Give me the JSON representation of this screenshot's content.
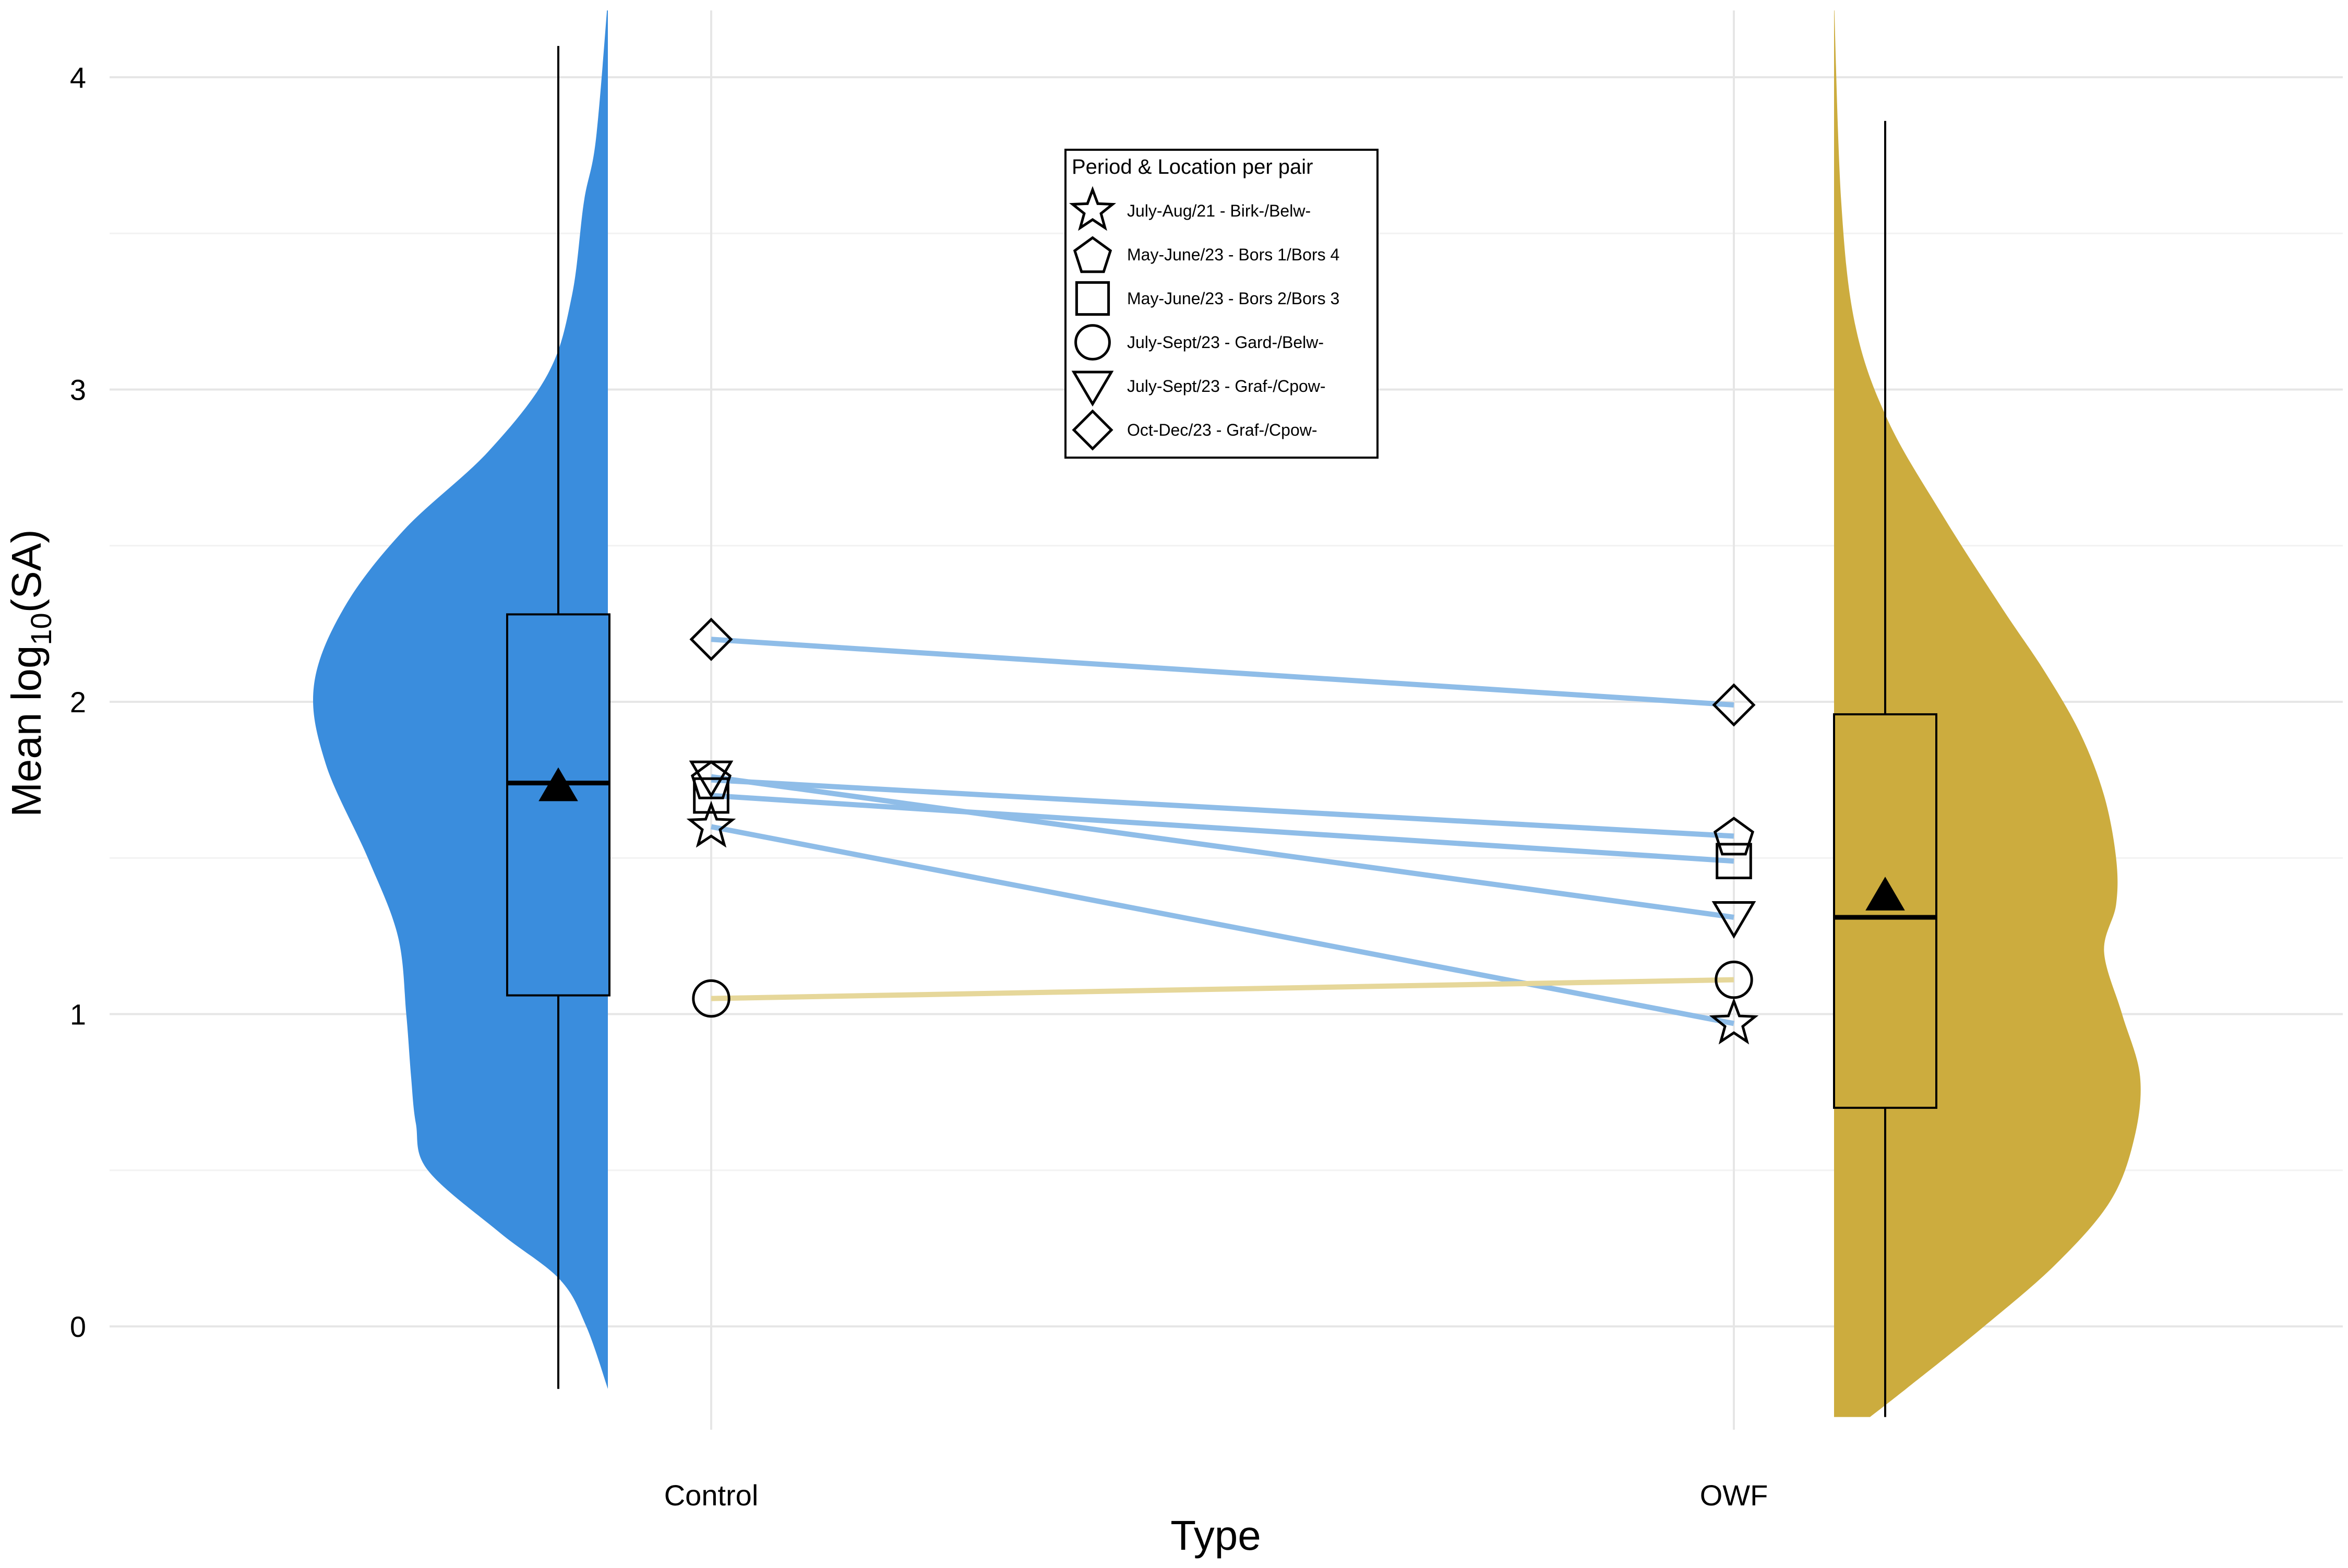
{
  "chart_data": {
    "type": "raincloud",
    "xlabel": "Type",
    "ylabel_main": "Mean log",
    "ylabel_sub": "10",
    "ylabel_tail": "(SA)",
    "categories": [
      "Control",
      "OWF"
    ],
    "ylim": [
      -0.45,
      4.25
    ],
    "y_ticks": [
      0,
      1,
      2,
      3,
      4
    ],
    "y_tick_labels": [
      "0",
      "1",
      "2",
      "3",
      "4"
    ],
    "grid": true,
    "legend": {
      "title": "Period & Location per pair",
      "placement": "top-center",
      "entries": [
        {
          "shape": "star",
          "label": "July-Aug/21 - Birk-/Belw-"
        },
        {
          "shape": "pentagon",
          "label": "May-June/23 - Bors 1/Bors 4"
        },
        {
          "shape": "square",
          "label": "May-June/23 - Bors 2/Bors 3"
        },
        {
          "shape": "circle",
          "label": "July-Sept/23 - Gard-/Belw-"
        },
        {
          "shape": "triangle-down",
          "label": "July-Sept/23 - Graf-/Cpow-"
        },
        {
          "shape": "diamond",
          "label": "Oct-Dec/23 - Graf-/Cpow-"
        }
      ]
    },
    "groups": [
      {
        "name": "Control",
        "color": "#3a8ddd",
        "box": {
          "whisker_low": -0.2,
          "q1": 1.06,
          "median": 1.74,
          "q3": 2.28,
          "whisker_high": 4.1
        },
        "mean": 1.73,
        "density_range": [
          -0.2,
          4.25
        ],
        "density": [
          [
            -0.2,
            0.0
          ],
          [
            0.0,
            0.018
          ],
          [
            0.15,
            0.04
          ],
          [
            0.3,
            0.09
          ],
          [
            0.5,
            0.15
          ],
          [
            0.65,
            0.16
          ],
          [
            0.8,
            0.164
          ],
          [
            1.0,
            0.168
          ],
          [
            1.25,
            0.175
          ],
          [
            1.5,
            0.2
          ],
          [
            1.8,
            0.235
          ],
          [
            2.05,
            0.245
          ],
          [
            2.3,
            0.22
          ],
          [
            2.55,
            0.17
          ],
          [
            2.8,
            0.1
          ],
          [
            3.05,
            0.05
          ],
          [
            3.3,
            0.03
          ],
          [
            3.6,
            0.02
          ],
          [
            3.8,
            0.01
          ],
          [
            4.25,
            0.0
          ]
        ]
      },
      {
        "name": "OWF",
        "color": "#ccac3e",
        "box": {
          "whisker_low": -0.29,
          "q1": 0.7,
          "median": 1.31,
          "q3": 1.96,
          "whisker_high": 3.86
        },
        "mean": 1.38,
        "density_range": [
          -0.29,
          4.25
        ],
        "density": [
          [
            -0.29,
            0.03
          ],
          [
            -0.2,
            0.06
          ],
          [
            0.0,
            0.125
          ],
          [
            0.2,
            0.185
          ],
          [
            0.4,
            0.23
          ],
          [
            0.6,
            0.25
          ],
          [
            0.8,
            0.255
          ],
          [
            1.0,
            0.24
          ],
          [
            1.2,
            0.225
          ],
          [
            1.35,
            0.235
          ],
          [
            1.5,
            0.235
          ],
          [
            1.7,
            0.225
          ],
          [
            1.9,
            0.205
          ],
          [
            2.1,
            0.175
          ],
          [
            2.3,
            0.14
          ],
          [
            2.6,
            0.09
          ],
          [
            2.9,
            0.045
          ],
          [
            3.2,
            0.018
          ],
          [
            3.6,
            0.006
          ],
          [
            4.25,
            0.0
          ]
        ]
      }
    ],
    "pairs": [
      {
        "shape": "diamond",
        "control": 2.2,
        "owf": 1.99,
        "color": "#8fbde8"
      },
      {
        "shape": "pentagon",
        "control": 1.75,
        "owf": 1.57,
        "color": "#8fbde8"
      },
      {
        "shape": "square",
        "control": 1.7,
        "owf": 1.49,
        "color": "#8fbde8"
      },
      {
        "shape": "triangle-down",
        "control": 1.76,
        "owf": 1.31,
        "color": "#8fbde8"
      },
      {
        "shape": "star",
        "control": 1.6,
        "owf": 0.97,
        "color": "#8fbde8"
      },
      {
        "shape": "circle",
        "control": 1.05,
        "owf": 1.11,
        "color": "#e6d79a"
      }
    ]
  }
}
